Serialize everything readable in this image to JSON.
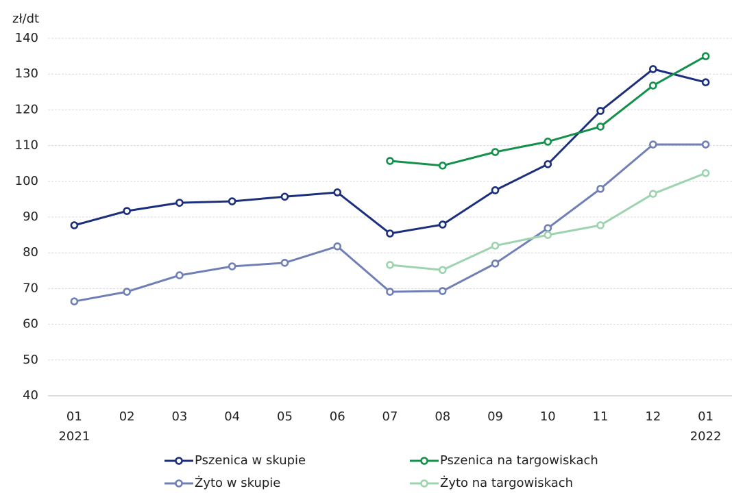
{
  "chart_data": {
    "type": "line",
    "y_axis_label": "zł/dt",
    "categories": [
      "01",
      "02",
      "03",
      "04",
      "05",
      "06",
      "07",
      "08",
      "09",
      "10",
      "11",
      "12",
      "01"
    ],
    "category_years": [
      "2021",
      null,
      null,
      null,
      null,
      null,
      null,
      null,
      null,
      null,
      null,
      null,
      "2022"
    ],
    "ylim": [
      40,
      140
    ],
    "yticks": [
      40,
      50,
      60,
      70,
      80,
      90,
      100,
      110,
      120,
      130,
      140
    ],
    "grid": true,
    "legend": "bottom",
    "series": [
      {
        "name": "Pszenica w skupie",
        "color": "#1b2f7d",
        "values": [
          87.7,
          91.7,
          94.0,
          94.4,
          95.7,
          96.9,
          85.4,
          87.9,
          97.5,
          104.8,
          119.7,
          131.4,
          127.7
        ]
      },
      {
        "name": "Pszenica na targowiskach",
        "color": "#13904a",
        "values": [
          null,
          null,
          null,
          null,
          null,
          null,
          105.7,
          104.4,
          108.2,
          111.1,
          115.3,
          126.8,
          135.0
        ]
      },
      {
        "name": "Żyto w skupie",
        "color": "#7080b6",
        "values": [
          66.4,
          69.1,
          73.7,
          76.2,
          77.2,
          81.8,
          69.1,
          69.3,
          77.0,
          86.9,
          97.9,
          110.3,
          110.3
        ]
      },
      {
        "name": "Żyto na targowiskach",
        "color": "#9dd3ae",
        "values": [
          null,
          null,
          null,
          null,
          null,
          null,
          76.6,
          75.2,
          82.0,
          85.0,
          87.7,
          96.5,
          102.3
        ]
      }
    ]
  }
}
